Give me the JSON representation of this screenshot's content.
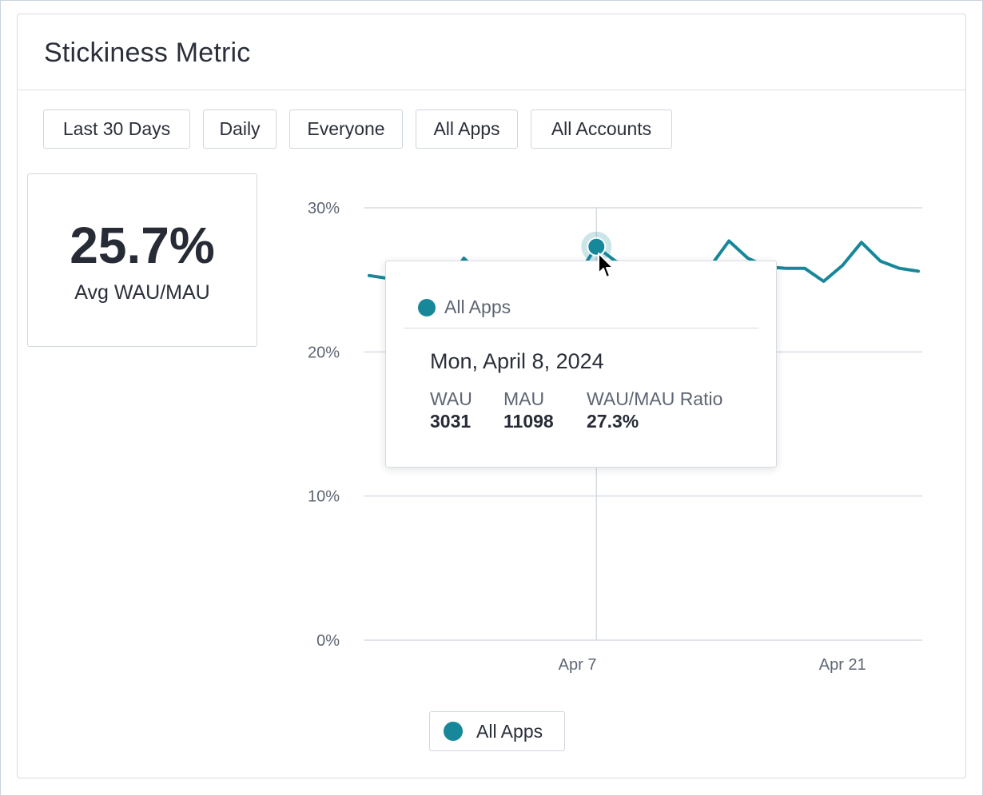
{
  "card": {
    "title": "Stickiness Metric"
  },
  "filters": [
    {
      "label": "Last 30 Days"
    },
    {
      "label": "Daily"
    },
    {
      "label": "Everyone"
    },
    {
      "label": "All Apps"
    },
    {
      "label": "All Accounts"
    }
  ],
  "kpi": {
    "value": "25.7%",
    "label": "Avg WAU/MAU"
  },
  "tooltip": {
    "series": "All Apps",
    "date": "Mon, April 8, 2024",
    "columns": [
      {
        "label": "WAU",
        "value": "3031"
      },
      {
        "label": "MAU",
        "value": "11098"
      },
      {
        "label": "WAU/MAU Ratio",
        "value": "27.3%"
      }
    ]
  },
  "legend": {
    "label": "All Apps"
  },
  "colors": {
    "series": "#17879a",
    "grid": "#d6dce3"
  },
  "chart_data": {
    "type": "line",
    "x_tick_labels": [
      "Apr 7",
      "Apr 21"
    ],
    "y_tick_labels": [
      "0%",
      "10%",
      "20%",
      "30%"
    ],
    "ylim": [
      0,
      30
    ],
    "grid": true,
    "legend": "bottom-center",
    "highlighted_point": {
      "x": "Apr 8",
      "y": 27.3
    },
    "series": [
      {
        "name": "All Apps",
        "x": [
          "Mar 27",
          "Mar 28",
          "Mar 29",
          "Mar 30",
          "Mar 31",
          "Apr 1",
          "Apr 2",
          "Apr 3",
          "Apr 4",
          "Apr 5",
          "Apr 6",
          "Apr 7",
          "Apr 8",
          "Apr 9",
          "Apr 10",
          "Apr 11",
          "Apr 12",
          "Apr 13",
          "Apr 14",
          "Apr 15",
          "Apr 16",
          "Apr 17",
          "Apr 18",
          "Apr 19",
          "Apr 20",
          "Apr 21",
          "Apr 22",
          "Apr 23",
          "Apr 24",
          "Apr 25"
        ],
        "values": [
          25.3,
          25.1,
          24.5,
          23.8,
          24.6,
          26.5,
          25.2,
          24.4,
          24.5,
          24.9,
          24.1,
          25.3,
          27.3,
          26.3,
          25.8,
          26.0,
          25.8,
          24.8,
          25.9,
          27.7,
          26.5,
          25.9,
          25.8,
          25.8,
          24.9,
          26.0,
          27.6,
          26.3,
          25.8,
          25.6
        ]
      }
    ]
  }
}
